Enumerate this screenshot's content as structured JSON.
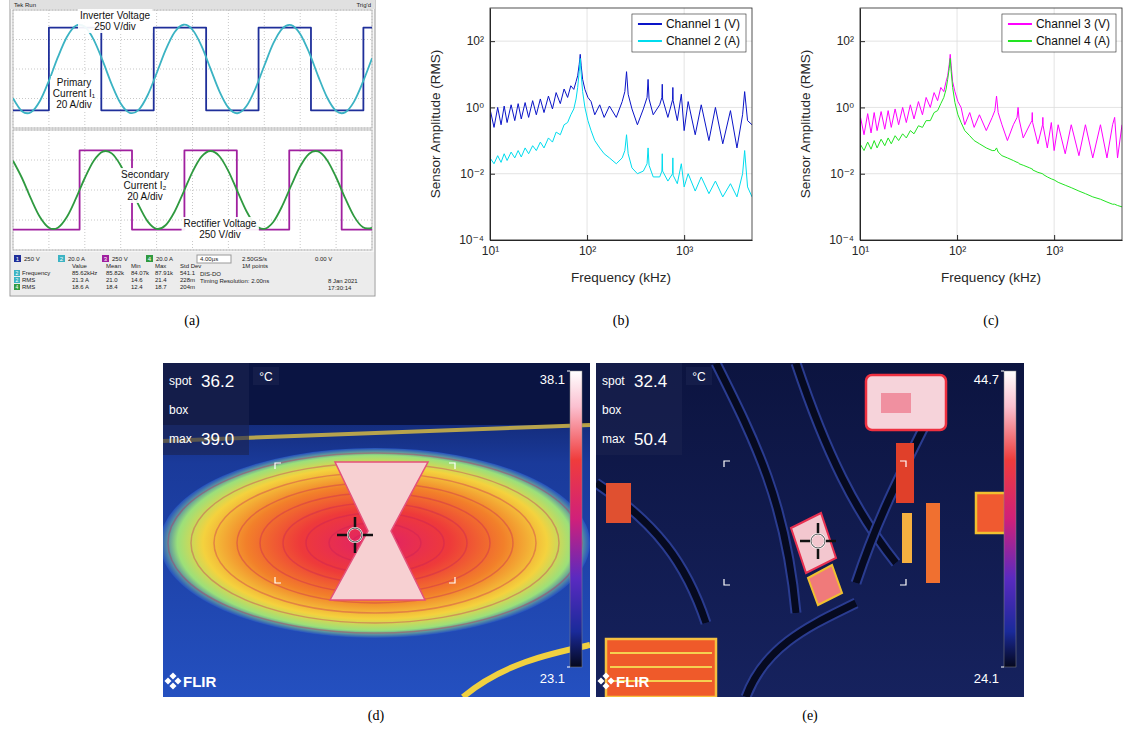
{
  "chart_data": [
    {
      "type": "oscilloscope",
      "label": "(a)",
      "header": [
        "Tek Run",
        "Trig'd"
      ],
      "xlim": [
        0,
        40
      ],
      "xticks": [
        0,
        4,
        8,
        12,
        16,
        20,
        24,
        28,
        32,
        36,
        40
      ],
      "grid": true,
      "tick_labels": false,
      "panes": [
        {
          "ylim": [
            -500,
            500
          ],
          "yticks": [
            -500,
            -250,
            0,
            250,
            500
          ],
          "y2lim": [
            -40,
            40
          ],
          "series": [
            {
              "x": [
                0,
                4.0,
                9.84,
                15.68,
                21.52,
                27.36,
                33.2,
                39.04,
                40
              ],
              "values": [
                -350,
                350,
                -350,
                350,
                -350,
                350,
                -350,
                350,
                350
              ],
              "color": "#1f2f9a",
              "line_style": "step"
            },
            {
              "x": [
                0,
                1,
                2,
                3,
                4,
                5,
                6,
                7,
                8,
                9,
                10,
                11,
                12,
                13,
                14,
                15,
                16,
                17,
                18,
                19,
                20,
                21,
                22,
                23,
                24,
                25,
                26,
                27,
                28,
                29,
                30,
                31,
                32,
                33,
                34,
                35,
                36,
                37,
                38,
                39,
                40
              ],
              "values": [
                -19.8,
                -28.6,
                -29.3,
                -21.7,
                -8.0,
                8.0,
                21.7,
                29.3,
                28.6,
                19.8,
                5.5,
                -10.4,
                -23.4,
                -29.7,
                -27.7,
                -17.8,
                -2.9,
                12.8,
                24.9,
                30.0,
                26.6,
                15.7,
                0.3,
                -15.1,
                -26.2,
                -30.0,
                -25.3,
                -13.4,
                2.2,
                17.3,
                27.4,
                29.8,
                23.8,
                11.1,
                -4.8,
                -19.3,
                -28.4,
                -29.4,
                -22.1,
                -8.6,
                7.3
              ],
              "color": "#3bb3c3",
              "line_style": "solid",
              "axis": "y2"
            }
          ],
          "annotations": [
            [
              "Inverter Voltage",
              "250 V/div"
            ],
            [
              "Primary",
              "Current I₁",
              "20 A/div"
            ]
          ]
        },
        {
          "ylim": [
            -500,
            500
          ],
          "yticks": [
            -500,
            -250,
            0,
            250,
            500
          ],
          "y2lim": [
            -40,
            40
          ],
          "series": [
            {
              "x": [
                0,
                7.42,
                13.26,
                19.1,
                24.94,
                30.78,
                36.62,
                40
              ],
              "values": [
                -330,
                330,
                -330,
                330,
                -330,
                330,
                -330,
                -330
              ],
              "color": "#a0209f",
              "line_style": "step"
            },
            {
              "x": [
                0,
                1,
                2,
                3,
                4,
                5,
                6,
                7,
                8,
                9,
                10,
                11,
                12,
                13,
                14,
                15,
                16,
                17,
                18,
                19,
                20,
                21,
                22,
                23,
                24,
                25,
                26,
                27,
                28,
                29,
                30,
                31,
                32,
                33,
                34,
                35,
                36,
                37,
                38,
                39,
                40
              ],
              "values": [
                19.5,
                8.0,
                -5.8,
                -18.0,
                -25.1,
                -25.1,
                -18.0,
                -5.8,
                8.0,
                19.5,
                25.6,
                24.4,
                16.3,
                3.6,
                -10.1,
                -20.9,
                -25.9,
                -23.5,
                -14.5,
                -1.4,
                12.1,
                22.2,
                26.0,
                22.5,
                12.6,
                -0.8,
                -14.0,
                -23.3,
                -25.9,
                -21.3,
                -10.6,
                3.0,
                15.8,
                24.2,
                25.7,
                19.9,
                8.5,
                -5.3,
                -17.6,
                -24.9,
                -25.2
              ],
              "color": "#2f9a40",
              "line_style": "solid",
              "axis": "y2"
            }
          ],
          "annotations": [
            [
              "Secondary",
              "Current I₂",
              "20 A/div"
            ],
            [
              "Rectifier Voltage",
              "250 V/div"
            ]
          ]
        }
      ],
      "channels": [
        {
          "number": "1",
          "scale": "250 V",
          "color": "#1f2f9a"
        },
        {
          "number": "2",
          "scale": "20.0 A",
          "color": "#3bb3c3"
        },
        {
          "number": "3",
          "scale": "250 V",
          "color": "#a0209f"
        },
        {
          "number": "4",
          "scale": "20.0 A",
          "color": "#2f9a40"
        }
      ],
      "acquisition": [
        "4.00µs",
        "2.50GS/s",
        "1M points"
      ],
      "trigger": "0.00 V",
      "measurements": {
        "columns": [
          "Value",
          "Mean",
          "Min",
          "Max",
          "Std Dev"
        ],
        "rows": [
          {
            "channel": "2",
            "name": "Frequency",
            "cells": [
              "85.62kHz",
              "85.82k",
              "84.07k",
              "87.91k",
              "541.1"
            ]
          },
          {
            "channel": "2",
            "name": "RMS",
            "cells": [
              "21.3 A",
              "21.0",
              "14.6",
              "21.4",
              "228m"
            ]
          },
          {
            "channel": "4",
            "name": "RMS",
            "cells": [
              "18.6 A",
              "18.4",
              "12.4",
              "18.7",
              "204m"
            ]
          }
        ]
      },
      "status": [
        "DIS-DO",
        "Timing Resolution: 2.00ns"
      ],
      "timestamp": [
        "8 Jan 2021",
        "17:30:14"
      ]
    },
    {
      "type": "line",
      "label": "(b)",
      "log": true,
      "grid": true,
      "legend": "top-right",
      "xlabel": "Frequency (kHz)",
      "ylabel": "Sensor Amplitude (RMS)",
      "xlim": [
        10,
        5000
      ],
      "ylim": [
        0.0001,
        1000
      ],
      "xticks": [
        {
          "value": 10,
          "label": "10¹"
        },
        {
          "value": 100,
          "label": "10²"
        },
        {
          "value": 1000,
          "label": "10³"
        }
      ],
      "yticks": [
        {
          "value": 0.0001,
          "label": "10⁻⁴"
        },
        {
          "value": 0.01,
          "label": "10⁻²"
        },
        {
          "value": 1,
          "label": "10⁰"
        },
        {
          "value": 100,
          "label": "10²"
        }
      ],
      "x": [
        10,
        11,
        12,
        13,
        14,
        15,
        16.5,
        18,
        19.5,
        21,
        23,
        25,
        27.5,
        30,
        33,
        36,
        40,
        44,
        48,
        53,
        58,
        63,
        68,
        73,
        77,
        80,
        83,
        85,
        87,
        90,
        95,
        102,
        110,
        120,
        135,
        150,
        170,
        200,
        230,
        245,
        255,
        265,
        290,
        330,
        380,
        415,
        425,
        435,
        480,
        560,
        590,
        595,
        600,
        680,
        760,
        765,
        770,
        850,
        935,
        1000,
        1100,
        1300,
        1500,
        1800,
        2100,
        2500,
        3000,
        3500,
        4000,
        4200,
        4500,
        5000
      ],
      "series": [
        {
          "name": "Channel 1 (V)",
          "color": "#0a14c8",
          "values": [
            0.9,
            0.25,
            1.0,
            0.3,
            1.1,
            0.35,
            1.2,
            0.4,
            1.3,
            0.45,
            1.4,
            0.5,
            1.6,
            0.6,
            1.8,
            0.7,
            2.2,
            0.9,
            2.8,
            1.3,
            3.6,
            2.0,
            4.5,
            3.5,
            6,
            9,
            20,
            40,
            18,
            7,
            3.5,
            2.0,
            1.5,
            0.6,
            1.2,
            0.5,
            1.1,
            0.5,
            1.5,
            3,
            12,
            2.5,
            0.9,
            0.3,
            0.9,
            2,
            7,
            1.8,
            0.6,
            1.2,
            2,
            5,
            1.8,
            0.5,
            1.7,
            4,
            1.6,
            0.4,
            2.5,
            0.2,
            1.5,
            0.15,
            1.2,
            0.1,
            1.0,
            0.08,
            0.8,
            0.06,
            0.6,
            3,
            0.4,
            0.3
          ]
        },
        {
          "name": "Channel 2 (A)",
          "color": "#00dcee",
          "values": [
            0.03,
            0.02,
            0.035,
            0.022,
            0.04,
            0.025,
            0.045,
            0.03,
            0.05,
            0.032,
            0.06,
            0.04,
            0.07,
            0.05,
            0.09,
            0.06,
            0.12,
            0.09,
            0.18,
            0.15,
            0.3,
            0.35,
            0.6,
            0.9,
            1.8,
            4,
            12,
            30,
            10,
            3,
            1.0,
            0.4,
            0.2,
            0.1,
            0.06,
            0.04,
            0.03,
            0.02,
            0.03,
            0.05,
            0.15,
            0.04,
            0.015,
            0.01,
            0.012,
            0.02,
            0.06,
            0.018,
            0.008,
            0.008,
            0.012,
            0.04,
            0.012,
            0.006,
            0.01,
            0.03,
            0.009,
            0.005,
            0.02,
            0.004,
            0.01,
            0.003,
            0.008,
            0.0025,
            0.006,
            0.002,
            0.005,
            0.002,
            0.01,
            0.05,
            0.004,
            0.002
          ]
        }
      ]
    },
    {
      "type": "line",
      "label": "(c)",
      "log": true,
      "grid": true,
      "legend": "top-right",
      "xlabel": "Frequency (kHz)",
      "ylabel": "Sensor Amplitude (RMS)",
      "xlim": [
        10,
        5000
      ],
      "ylim": [
        0.0001,
        1000
      ],
      "xticks": [
        {
          "value": 10,
          "label": "10¹"
        },
        {
          "value": 100,
          "label": "10²"
        },
        {
          "value": 1000,
          "label": "10³"
        }
      ],
      "yticks": [
        {
          "value": 0.0001,
          "label": "10⁻⁴"
        },
        {
          "value": 0.01,
          "label": "10⁻²"
        },
        {
          "value": 1,
          "label": "10⁰"
        },
        {
          "value": 100,
          "label": "10²"
        }
      ],
      "x": [
        10,
        11,
        12,
        13,
        14,
        15,
        16.5,
        18,
        19.5,
        21,
        23,
        25,
        27.5,
        30,
        33,
        36,
        40,
        44,
        48,
        53,
        58,
        63,
        68,
        73,
        77,
        80,
        83,
        85,
        87,
        90,
        95,
        102,
        110,
        120,
        135,
        150,
        170,
        200,
        230,
        245,
        255,
        265,
        290,
        330,
        380,
        415,
        425,
        435,
        480,
        560,
        590,
        595,
        600,
        680,
        760,
        765,
        770,
        850,
        935,
        1000,
        1100,
        1300,
        1500,
        1800,
        2100,
        2500,
        3000,
        3500,
        4000,
        4200,
        4500,
        5000
      ],
      "series": [
        {
          "name": "Channel 3 (V)",
          "color": "#ff00ff",
          "values": [
            0.6,
            0.15,
            0.65,
            0.17,
            0.7,
            0.2,
            0.75,
            0.22,
            0.8,
            0.25,
            0.9,
            0.3,
            1.0,
            0.35,
            1.2,
            0.45,
            1.5,
            0.6,
            2.0,
            1.0,
            2.8,
            1.6,
            4,
            3,
            6,
            9,
            20,
            40,
            18,
            6,
            3,
            1.5,
            1.0,
            0.3,
            0.7,
            0.25,
            0.6,
            0.2,
            0.5,
            0.8,
            2.2,
            0.7,
            0.3,
            0.1,
            0.3,
            0.5,
            1.0,
            0.45,
            0.12,
            0.3,
            0.4,
            0.7,
            0.35,
            0.08,
            0.3,
            0.5,
            0.28,
            0.06,
            0.35,
            0.05,
            0.3,
            0.04,
            0.3,
            0.035,
            0.3,
            0.03,
            0.3,
            0.03,
            0.3,
            0.5,
            0.03,
            0.3
          ]
        },
        {
          "name": "Channel 4 (A)",
          "color": "#22e422",
          "values": [
            0.08,
            0.05,
            0.09,
            0.055,
            0.1,
            0.06,
            0.11,
            0.07,
            0.12,
            0.08,
            0.14,
            0.1,
            0.16,
            0.12,
            0.2,
            0.16,
            0.28,
            0.25,
            0.4,
            0.4,
            0.7,
            0.8,
            1.3,
            2,
            3.5,
            7,
            15,
            30,
            12,
            4,
            1.4,
            0.6,
            0.35,
            0.2,
            0.14,
            0.1,
            0.08,
            0.06,
            0.05,
            0.05,
            0.06,
            0.045,
            0.035,
            0.03,
            0.025,
            0.022,
            0.022,
            0.02,
            0.018,
            0.015,
            0.014,
            0.014,
            0.013,
            0.011,
            0.01,
            0.01,
            0.0095,
            0.008,
            0.007,
            0.0065,
            0.0055,
            0.0045,
            0.0038,
            0.003,
            0.0025,
            0.002,
            0.0017,
            0.0014,
            0.0012,
            0.0012,
            0.0011,
            0.001
          ]
        }
      ]
    },
    {
      "type": "thermal",
      "label": "(d)",
      "spot_label": "spot",
      "spot": 36.2,
      "unit": "°C",
      "box_label": "box",
      "max_label": "max",
      "max": {
        "value": 39,
        "label": "39.0"
      },
      "colorbar": {
        "range": [
          23.1,
          38.1
        ],
        "ticks": [
          23.1,
          38.1
        ]
      },
      "logo": "FLIR"
    },
    {
      "type": "thermal",
      "label": "(e)",
      "spot_label": "spot",
      "spot": 32.4,
      "unit": "°C",
      "box_label": "box",
      "max_label": "max",
      "max": 50.4,
      "colorbar": {
        "range": [
          24.1,
          44.7
        ],
        "ticks": [
          24.1,
          44.7
        ]
      },
      "logo": "FLIR"
    }
  ]
}
